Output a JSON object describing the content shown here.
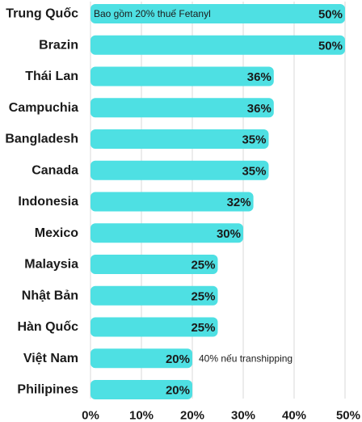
{
  "chart_data": {
    "type": "bar",
    "orientation": "horizontal",
    "categories": [
      "Trung Quốc",
      "Brazin",
      "Thái Lan",
      "Campuchia",
      "Bangladesh",
      "Canada",
      "Indonesia",
      "Mexico",
      "Malaysia",
      "Nhật Bản",
      "Hàn Quốc",
      "Việt Nam",
      "Philipines"
    ],
    "values": [
      50,
      50,
      36,
      36,
      35,
      35,
      32,
      30,
      25,
      25,
      25,
      20,
      20
    ],
    "value_labels": [
      "50%",
      "50%",
      "36%",
      "36%",
      "35%",
      "35%",
      "32%",
      "30%",
      "25%",
      "25%",
      "25%",
      "20%",
      "20%"
    ],
    "xlim": [
      0,
      50
    ],
    "x_ticks": [
      0,
      10,
      20,
      30,
      40,
      50
    ],
    "x_tick_labels": [
      "0%",
      "10%",
      "20%",
      "30%",
      "40%",
      "50%"
    ],
    "grid": true,
    "bar_color": "#4ee0e3",
    "grid_color": "#d9d9d9",
    "annotations": [
      {
        "category_index": 0,
        "text": "Bao gồm 20% thuế Fetanyl",
        "placement": "inside-bar-start"
      },
      {
        "category_index": 11,
        "text": "40% nếu transhipping",
        "placement": "after-bar"
      }
    ]
  }
}
